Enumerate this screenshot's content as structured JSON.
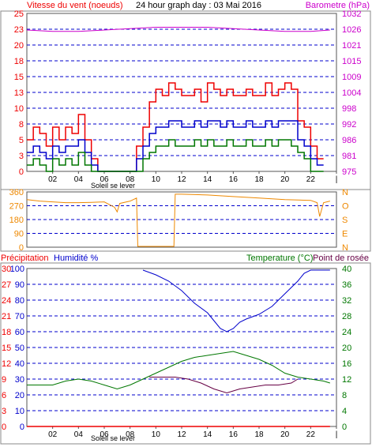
{
  "colors": {
    "wind_avg": "#0000cc",
    "wind_gust": "#ee0000",
    "wind_min": "#007700",
    "barometer": "#cc00cc",
    "direction": "#ee8800",
    "humidity": "#0000cc",
    "temperature": "#007700",
    "dewpoint": "#660044",
    "precip": "#ee0000",
    "grid": "#0000cc",
    "frame": "#888888",
    "left_axis": "#ee0000",
    "right_axis": "#cc00cc",
    "dir_axis": "#ee8800",
    "temp_axis": "#007700"
  },
  "header": {
    "wind_title": "Vitesse du vent (noeuds)",
    "graph_title": "24 hour graph day : 03 Mai 2016",
    "baro_title": "Barometre (hPa)"
  },
  "footer": {
    "sunrise_label_top": "Soleil se lever",
    "sunrise_label_bottom": "Soleil se lever"
  },
  "bottom_header": {
    "precip_title": "Précipitation",
    "humidity_title": "Humidité %",
    "temp_title": "Temperature (°C)",
    "dew_title": "Point de rosée"
  },
  "chart_data": [
    {
      "type": "line",
      "panel": "wind",
      "xlabel": "",
      "x_ticks": [
        "02",
        "04",
        "06",
        "08",
        "10",
        "12",
        "14",
        "16",
        "18",
        "20",
        "22",
        "|"
      ],
      "xlim": [
        0,
        24
      ],
      "left_axis": {
        "title": "Vitesse du vent (noeuds)",
        "ticks": [
          0,
          3,
          5,
          8,
          10,
          13,
          15,
          18,
          20,
          23,
          25
        ],
        "ylim": [
          0,
          25
        ]
      },
      "right_axis": {
        "title": "Barometre (hPa)",
        "ticks": [
          975,
          981,
          986,
          992,
          998,
          1004,
          1009,
          1015,
          1021,
          1026,
          1032
        ],
        "ylim": [
          975,
          1032
        ]
      },
      "grid": true,
      "series": [
        {
          "role": "gust",
          "x": [
            0.0,
            0.5,
            1.0,
            1.5,
            2.0,
            2.5,
            3.0,
            3.5,
            4.0,
            4.5,
            5.0,
            5.5,
            6.0,
            6.5,
            7.0,
            7.5,
            8.0,
            8.5,
            9.0,
            9.5,
            10.0,
            10.5,
            11.0,
            11.5,
            12.0,
            12.5,
            13.0,
            13.5,
            14.0,
            14.5,
            15.0,
            15.5,
            16.0,
            16.5,
            17.0,
            17.5,
            18.0,
            18.5,
            19.0,
            19.5,
            20.0,
            20.5,
            21.0,
            21.5,
            22.0,
            22.5,
            23.0
          ],
          "values": [
            5,
            7,
            6,
            4,
            7,
            5,
            7,
            6,
            9,
            5,
            2,
            0,
            0,
            0,
            0,
            0,
            0,
            4,
            7,
            11,
            13,
            12,
            14,
            13,
            12,
            12,
            13,
            11,
            14,
            13,
            12,
            13,
            12,
            12,
            13,
            12,
            12,
            14,
            12,
            13,
            14,
            13,
            8,
            7,
            4,
            2,
            2
          ]
        },
        {
          "role": "average",
          "x": [
            0.0,
            0.5,
            1.0,
            1.5,
            2.0,
            2.5,
            3.0,
            3.5,
            4.0,
            4.5,
            5.0,
            5.5,
            6.0,
            6.5,
            7.0,
            7.5,
            8.0,
            8.5,
            9.0,
            9.5,
            10.0,
            10.5,
            11.0,
            11.5,
            12.0,
            12.5,
            13.0,
            13.5,
            14.0,
            14.5,
            15.0,
            15.5,
            16.0,
            16.5,
            17.0,
            17.5,
            18.0,
            18.5,
            19.0,
            19.5,
            20.0,
            20.5,
            21.0,
            21.5,
            22.0,
            22.5,
            23.0
          ],
          "values": [
            3,
            4,
            3,
            2,
            4,
            3,
            4,
            4,
            5,
            3,
            1,
            0,
            0,
            0,
            0,
            0,
            0,
            2,
            4,
            6,
            7,
            7,
            8,
            8,
            7,
            7,
            8,
            7,
            8,
            8,
            7,
            8,
            7,
            7,
            8,
            7,
            7,
            8,
            7,
            8,
            8,
            8,
            5,
            4,
            2,
            1,
            1
          ]
        },
        {
          "role": "minimum",
          "x": [
            0.0,
            0.5,
            1.0,
            1.5,
            2.0,
            2.5,
            3.0,
            3.5,
            4.0,
            4.5,
            5.0,
            5.5,
            6.0,
            6.5,
            7.0,
            7.5,
            8.0,
            8.5,
            9.0,
            9.5,
            10.0,
            10.5,
            11.0,
            11.5,
            12.0,
            12.5,
            13.0,
            13.5,
            14.0,
            14.5,
            15.0,
            15.5,
            16.0,
            16.5,
            17.0,
            17.5,
            18.0,
            18.5,
            19.0,
            19.5,
            20.0,
            20.5,
            21.0,
            21.5,
            22.0,
            22.5,
            23.0
          ],
          "values": [
            1,
            2,
            1,
            0,
            2,
            1,
            2,
            1,
            3,
            1,
            0,
            0,
            0,
            0,
            0,
            0,
            0,
            0,
            2,
            3,
            4,
            4,
            5,
            4,
            4,
            4,
            5,
            4,
            5,
            4,
            4,
            5,
            4,
            4,
            5,
            4,
            4,
            5,
            4,
            5,
            5,
            4,
            3,
            2,
            0,
            0,
            0
          ]
        },
        {
          "role": "barometer",
          "axis": "right",
          "x": [
            0,
            2,
            4,
            6,
            8,
            10,
            12,
            14,
            16,
            18,
            20,
            22,
            23.5
          ],
          "values": [
            1026,
            1025.5,
            1025.5,
            1026,
            1026.5,
            1027,
            1027,
            1027,
            1026.5,
            1026,
            1025.5,
            1025.5,
            1026
          ]
        }
      ]
    },
    {
      "type": "line",
      "panel": "direction",
      "x_ticks": [],
      "xlim": [
        0,
        24
      ],
      "left_axis": {
        "ticks": [
          0,
          90,
          180,
          270,
          360
        ],
        "ylim": [
          0,
          360
        ]
      },
      "right_axis": {
        "ticks": [
          "N",
          "E",
          "S",
          "O",
          "N"
        ]
      },
      "grid": true,
      "series": [
        {
          "role": "direction",
          "x": [
            0,
            1,
            2,
            3,
            4,
            5,
            6,
            6.8,
            7.0,
            7.2,
            8.0,
            8.5,
            8.6,
            10.0,
            11.4,
            11.5,
            12.0,
            14.0,
            16.0,
            18.0,
            20.0,
            22.0,
            22.5,
            22.7,
            23.0,
            23.5
          ],
          "values": [
            310,
            300,
            295,
            290,
            290,
            292,
            295,
            260,
            230,
            285,
            300,
            320,
            5,
            5,
            5,
            345,
            345,
            340,
            330,
            320,
            310,
            305,
            290,
            200,
            290,
            300
          ]
        }
      ]
    },
    {
      "type": "line",
      "panel": "humidity_temperature",
      "x_ticks": [
        "02",
        "04",
        "06",
        "08",
        "10",
        "12",
        "14",
        "16",
        "18",
        "20",
        "22",
        "|"
      ],
      "xlim": [
        0,
        24
      ],
      "left_axis": {
        "title": "Humidité %",
        "ticks": [
          0,
          10,
          20,
          30,
          40,
          50,
          60,
          70,
          80,
          90,
          100
        ],
        "ylim": [
          0,
          100
        ]
      },
      "precip_axis": {
        "title": "Précipitation",
        "ticks": [
          0,
          3,
          6,
          9,
          12,
          15,
          18,
          21,
          24,
          27,
          30
        ],
        "ylim": [
          0,
          30
        ]
      },
      "right_axis": {
        "title": "Temperature (°C)",
        "ticks": [
          0,
          4,
          8,
          12,
          16,
          20,
          24,
          28,
          32,
          36,
          40
        ],
        "ylim": [
          0,
          40
        ]
      },
      "grid": true,
      "series": [
        {
          "role": "humidity",
          "axis": "left",
          "x": [
            9.0,
            10.0,
            11.0,
            12.0,
            13.0,
            14.0,
            14.5,
            15.0,
            15.5,
            16.0,
            16.5,
            17.0,
            18.0,
            19.0,
            20.0,
            21.0,
            21.5,
            22.0,
            23.5
          ],
          "values": [
            99,
            96,
            92,
            86,
            78,
            72,
            67,
            62,
            60,
            62,
            66,
            68,
            71,
            76,
            84,
            92,
            97,
            99,
            99
          ]
        },
        {
          "role": "temperature",
          "axis": "right",
          "x": [
            0,
            1,
            2,
            3,
            4,
            5,
            6,
            7,
            8,
            9,
            10,
            11,
            12,
            13,
            14,
            15,
            16,
            17,
            18,
            19,
            20,
            21,
            22,
            23,
            23.5
          ],
          "values": [
            10.5,
            10.5,
            10.5,
            11.5,
            12,
            11.5,
            10.5,
            9.5,
            10.5,
            12,
            13.5,
            15,
            16.5,
            17.5,
            18,
            18.5,
            19,
            18,
            17,
            15.5,
            13.5,
            12.5,
            12,
            11.5,
            11
          ]
        },
        {
          "role": "dewpoint",
          "axis": "right",
          "x": [
            9.5,
            10.5,
            11.5,
            12.5,
            13.5,
            14.5,
            15.0,
            15.5,
            16.0,
            16.5,
            17.5,
            18.5,
            19.5,
            20.5,
            21.0
          ],
          "values": [
            12.5,
            12.5,
            12.5,
            12,
            11,
            9.5,
            9,
            8.5,
            9,
            9.5,
            10,
            10.5,
            10.5,
            11,
            12
          ]
        },
        {
          "role": "precipitation",
          "axis": "precip",
          "x": [
            0,
            23.5
          ],
          "values": [
            0,
            0
          ]
        }
      ]
    }
  ]
}
